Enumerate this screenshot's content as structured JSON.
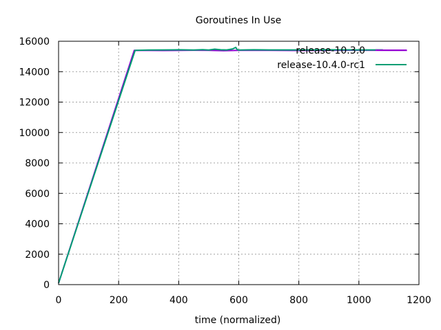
{
  "chart_data": {
    "type": "line",
    "title": "Goroutines In Use",
    "xlabel": "time (normalized)",
    "ylabel": "",
    "xlim": [
      0,
      1200
    ],
    "ylim": [
      0,
      16000
    ],
    "xticks": [
      0,
      200,
      400,
      600,
      800,
      1000,
      1200
    ],
    "yticks": [
      0,
      2000,
      4000,
      6000,
      8000,
      10000,
      12000,
      14000,
      16000
    ],
    "grid": true,
    "legend_position": "top-right",
    "series": [
      {
        "name": "release-10.3.0",
        "color": "#9400d3",
        "x": [
          0,
          252,
          350,
          450,
          500,
          550,
          600,
          700,
          800,
          900,
          1000,
          1100,
          1160
        ],
        "y": [
          100,
          15400,
          15390,
          15410,
          15400,
          15380,
          15400,
          15400,
          15390,
          15400,
          15410,
          15400,
          15400
        ]
      },
      {
        "name": "release-10.4.0-rc1",
        "color": "#009e73",
        "x": [
          0,
          255,
          300,
          350,
          400,
          450,
          480,
          500,
          520,
          540,
          560,
          580,
          590,
          595,
          600,
          650,
          700,
          800,
          900,
          1000,
          1080
        ],
        "y": [
          100,
          15400,
          15420,
          15430,
          15440,
          15420,
          15450,
          15420,
          15480,
          15440,
          15430,
          15500,
          15600,
          15450,
          15420,
          15440,
          15430,
          15430,
          15440,
          15430,
          15430
        ]
      }
    ]
  }
}
